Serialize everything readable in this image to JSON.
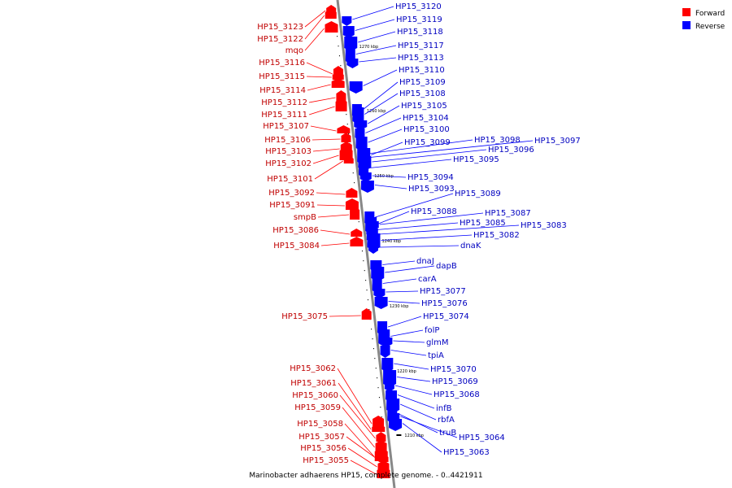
{
  "caption": "Marinobacter adhaerens HP15, complete genome. - 0..4421911",
  "legend": [
    {
      "label": "Forward",
      "color": "#ff0000"
    },
    {
      "label": "Reverse",
      "color": "#0000ff"
    }
  ],
  "colors": {
    "forward": "#ff0000",
    "reverse": "#0000ff",
    "forward_label": "#c00000",
    "reverse_label": "#0000c0"
  },
  "scale_ticks": [
    "1270 kbp",
    "1260 kbp",
    "1250 kbp",
    "1240 kbp",
    "1230 kbp",
    "1220 kbp",
    "1210 kbp"
  ],
  "forward_genes": [
    "HP15_3123",
    "HP15_3122",
    "mqo",
    "HP15_3116",
    "HP15_3115",
    "HP15_3114",
    "HP15_3112",
    "HP15_3111",
    "HP15_3107",
    "HP15_3106",
    "HP15_3103",
    "HP15_3102",
    "HP15_3101",
    "HP15_3092",
    "HP15_3091",
    "smpB",
    "HP15_3086",
    "HP15_3084",
    "HP15_3075",
    "HP15_3062",
    "HP15_3061",
    "HP15_3060",
    "HP15_3059",
    "HP15_3058",
    "HP15_3057",
    "HP15_3056",
    "HP15_3055"
  ],
  "reverse_genes": [
    "HP15_3120",
    "HP15_3119",
    "HP15_3118",
    "HP15_3117",
    "HP15_3113",
    "HP15_3110",
    "HP15_3109",
    "HP15_3108",
    "HP15_3105",
    "HP15_3104",
    "HP15_3100",
    "HP15_3099",
    "HP15_3098",
    "HP15_3097",
    "HP15_3096",
    "HP15_3095",
    "HP15_3094",
    "HP15_3093",
    "HP15_3089",
    "HP15_3088",
    "HP15_3087",
    "HP15_3085",
    "HP15_3083",
    "HP15_3082",
    "dnaK",
    "dnaJ",
    "dapB",
    "carA",
    "HP15_3077",
    "HP15_3076",
    "HP15_3074",
    "folP",
    "glmM",
    "tpiA",
    "HP15_3070",
    "HP15_3069",
    "HP15_3068",
    "infB",
    "rbfA",
    "truB",
    "HP15_3064",
    "HP15_3063"
  ]
}
